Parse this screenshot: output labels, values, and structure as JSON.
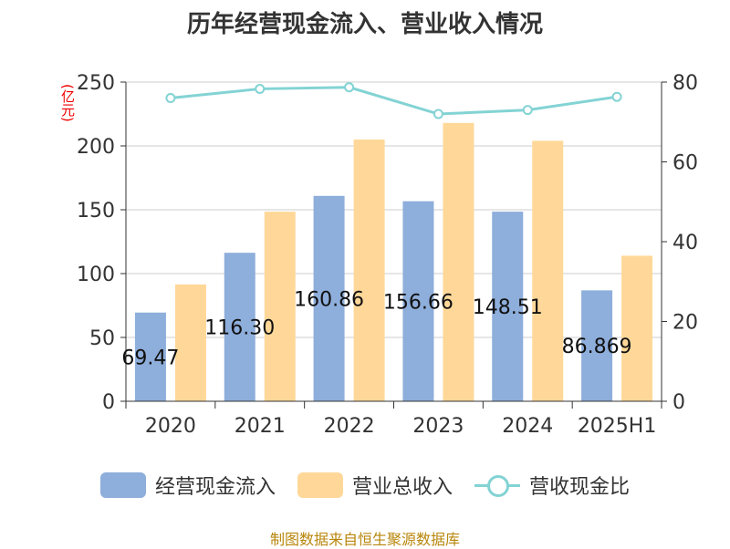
{
  "title": "历年经营现金流入、营业收入情况",
  "source": "制图数据来自恒生聚源数据库",
  "chart_data": {
    "type": "bar",
    "categories": [
      "2020",
      "2021",
      "2022",
      "2023",
      "2024",
      "2025H1"
    ],
    "series": [
      {
        "name": "经营现金流入",
        "type": "bar",
        "axis": "left",
        "color": "#8eaedb",
        "values": [
          69.47,
          116.3,
          160.86,
          156.66,
          148.51,
          86.869
        ],
        "data_labels": [
          "69.47",
          "116.30",
          "160.86",
          "156.66",
          "148.51",
          "86.869"
        ]
      },
      {
        "name": "营业总收入",
        "type": "bar",
        "axis": "left",
        "color": "#ffd899",
        "values": [
          91.5,
          148.5,
          205.0,
          218.0,
          204.0,
          114.0
        ]
      },
      {
        "name": "营收现金比",
        "type": "line",
        "axis": "right",
        "color": "#83d3d4",
        "values": [
          76.0,
          78.3,
          78.7,
          72.0,
          73.0,
          76.3
        ]
      }
    ],
    "ylabel": "(亿元)",
    "ylim": [
      0,
      250
    ],
    "yticks": [
      0,
      50,
      100,
      150,
      200,
      250
    ],
    "y2lim": [
      0,
      80
    ],
    "y2ticks": [
      0,
      20,
      40,
      60,
      80
    ],
    "grid": true,
    "legend_position": "bottom"
  }
}
